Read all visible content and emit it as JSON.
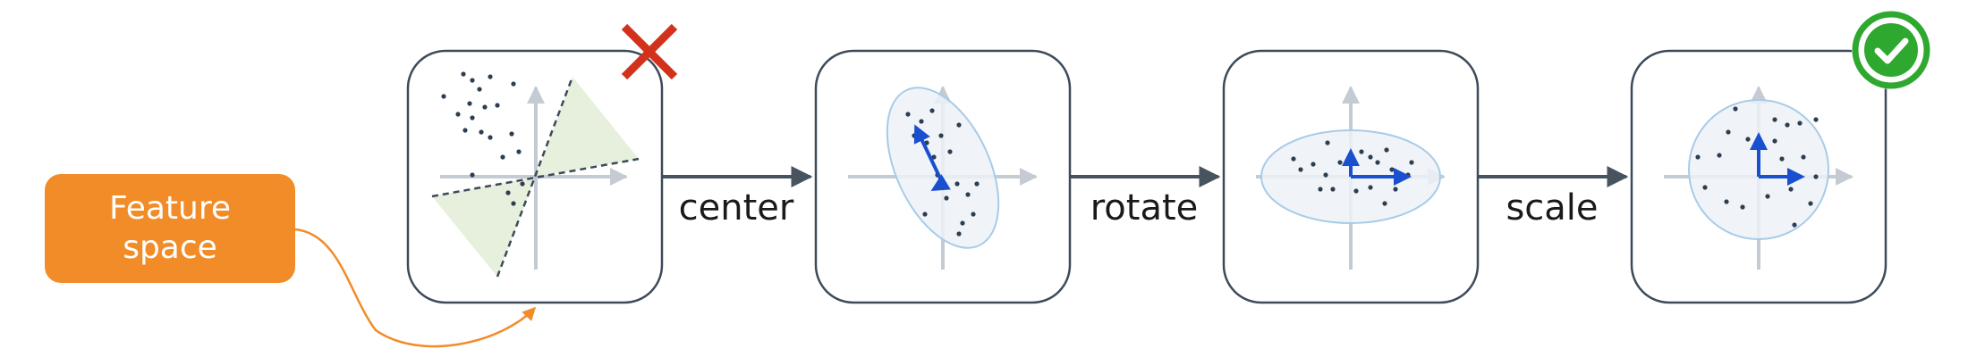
{
  "feature_box": {
    "label": "Feature\nspace",
    "color": "#f28c28"
  },
  "steps": [
    {
      "label": "center"
    },
    {
      "label": "rotate"
    },
    {
      "label": "scale"
    }
  ],
  "status_icons": {
    "first_panel": "cross-icon",
    "last_panel": "check-icon",
    "cross_color": "#d2311b",
    "check_color": "#2ea82e"
  },
  "colors": {
    "panel_border": "#3c4a5a",
    "axis": "#c4cbd3",
    "point": "#2c3e50",
    "vector": "#1a4fd0",
    "ellipse_fill": "#edf2f7",
    "ellipse_stroke": "#a8cbe8",
    "wedge_fill": "#e6f0dc",
    "flow_arrow": "#47535f",
    "connector": "#f28c28"
  }
}
